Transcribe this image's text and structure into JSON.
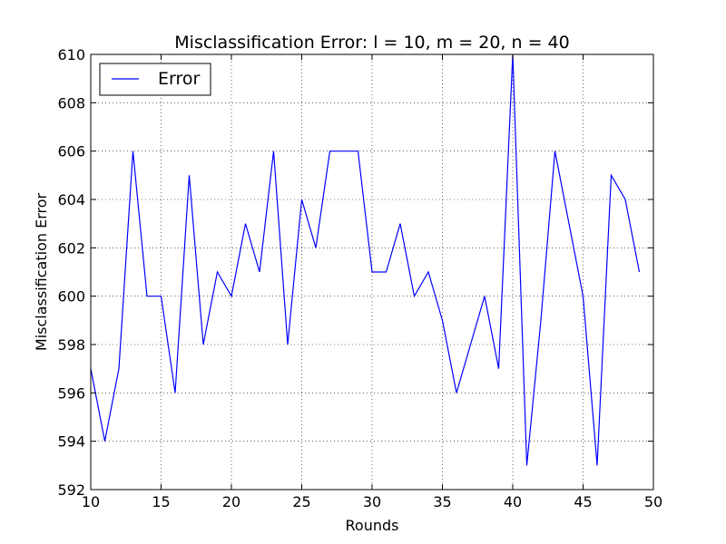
{
  "chart_data": {
    "type": "line",
    "title": "Misclassification Error: l = 10, m = 20, n = 40",
    "xlabel": "Rounds",
    "ylabel": "Misclassification Error",
    "xlim": [
      10,
      50
    ],
    "ylim": [
      592,
      610
    ],
    "xticks": [
      10,
      15,
      20,
      25,
      30,
      35,
      40,
      45,
      50
    ],
    "yticks": [
      592,
      594,
      596,
      598,
      600,
      602,
      604,
      606,
      608,
      610
    ],
    "grid": true,
    "legend_position": "top-left",
    "series": [
      {
        "name": "Error",
        "color": "#0000ff",
        "x": [
          10,
          11,
          12,
          13,
          14,
          15,
          16,
          17,
          18,
          19,
          20,
          21,
          22,
          23,
          24,
          25,
          26,
          27,
          28,
          29,
          30,
          31,
          32,
          33,
          34,
          35,
          36,
          37,
          38,
          39,
          40,
          41,
          42,
          43,
          44,
          45,
          46,
          47,
          48,
          49
        ],
        "y": [
          597,
          594,
          597,
          606,
          600,
          600,
          596,
          605,
          598,
          601,
          600,
          603,
          601,
          606,
          598,
          604,
          602,
          606,
          606,
          606,
          601,
          601,
          603,
          600,
          601,
          599,
          596,
          598,
          600,
          597,
          610,
          593,
          599,
          606,
          603,
          600,
          593,
          605,
          604,
          601
        ]
      }
    ]
  }
}
